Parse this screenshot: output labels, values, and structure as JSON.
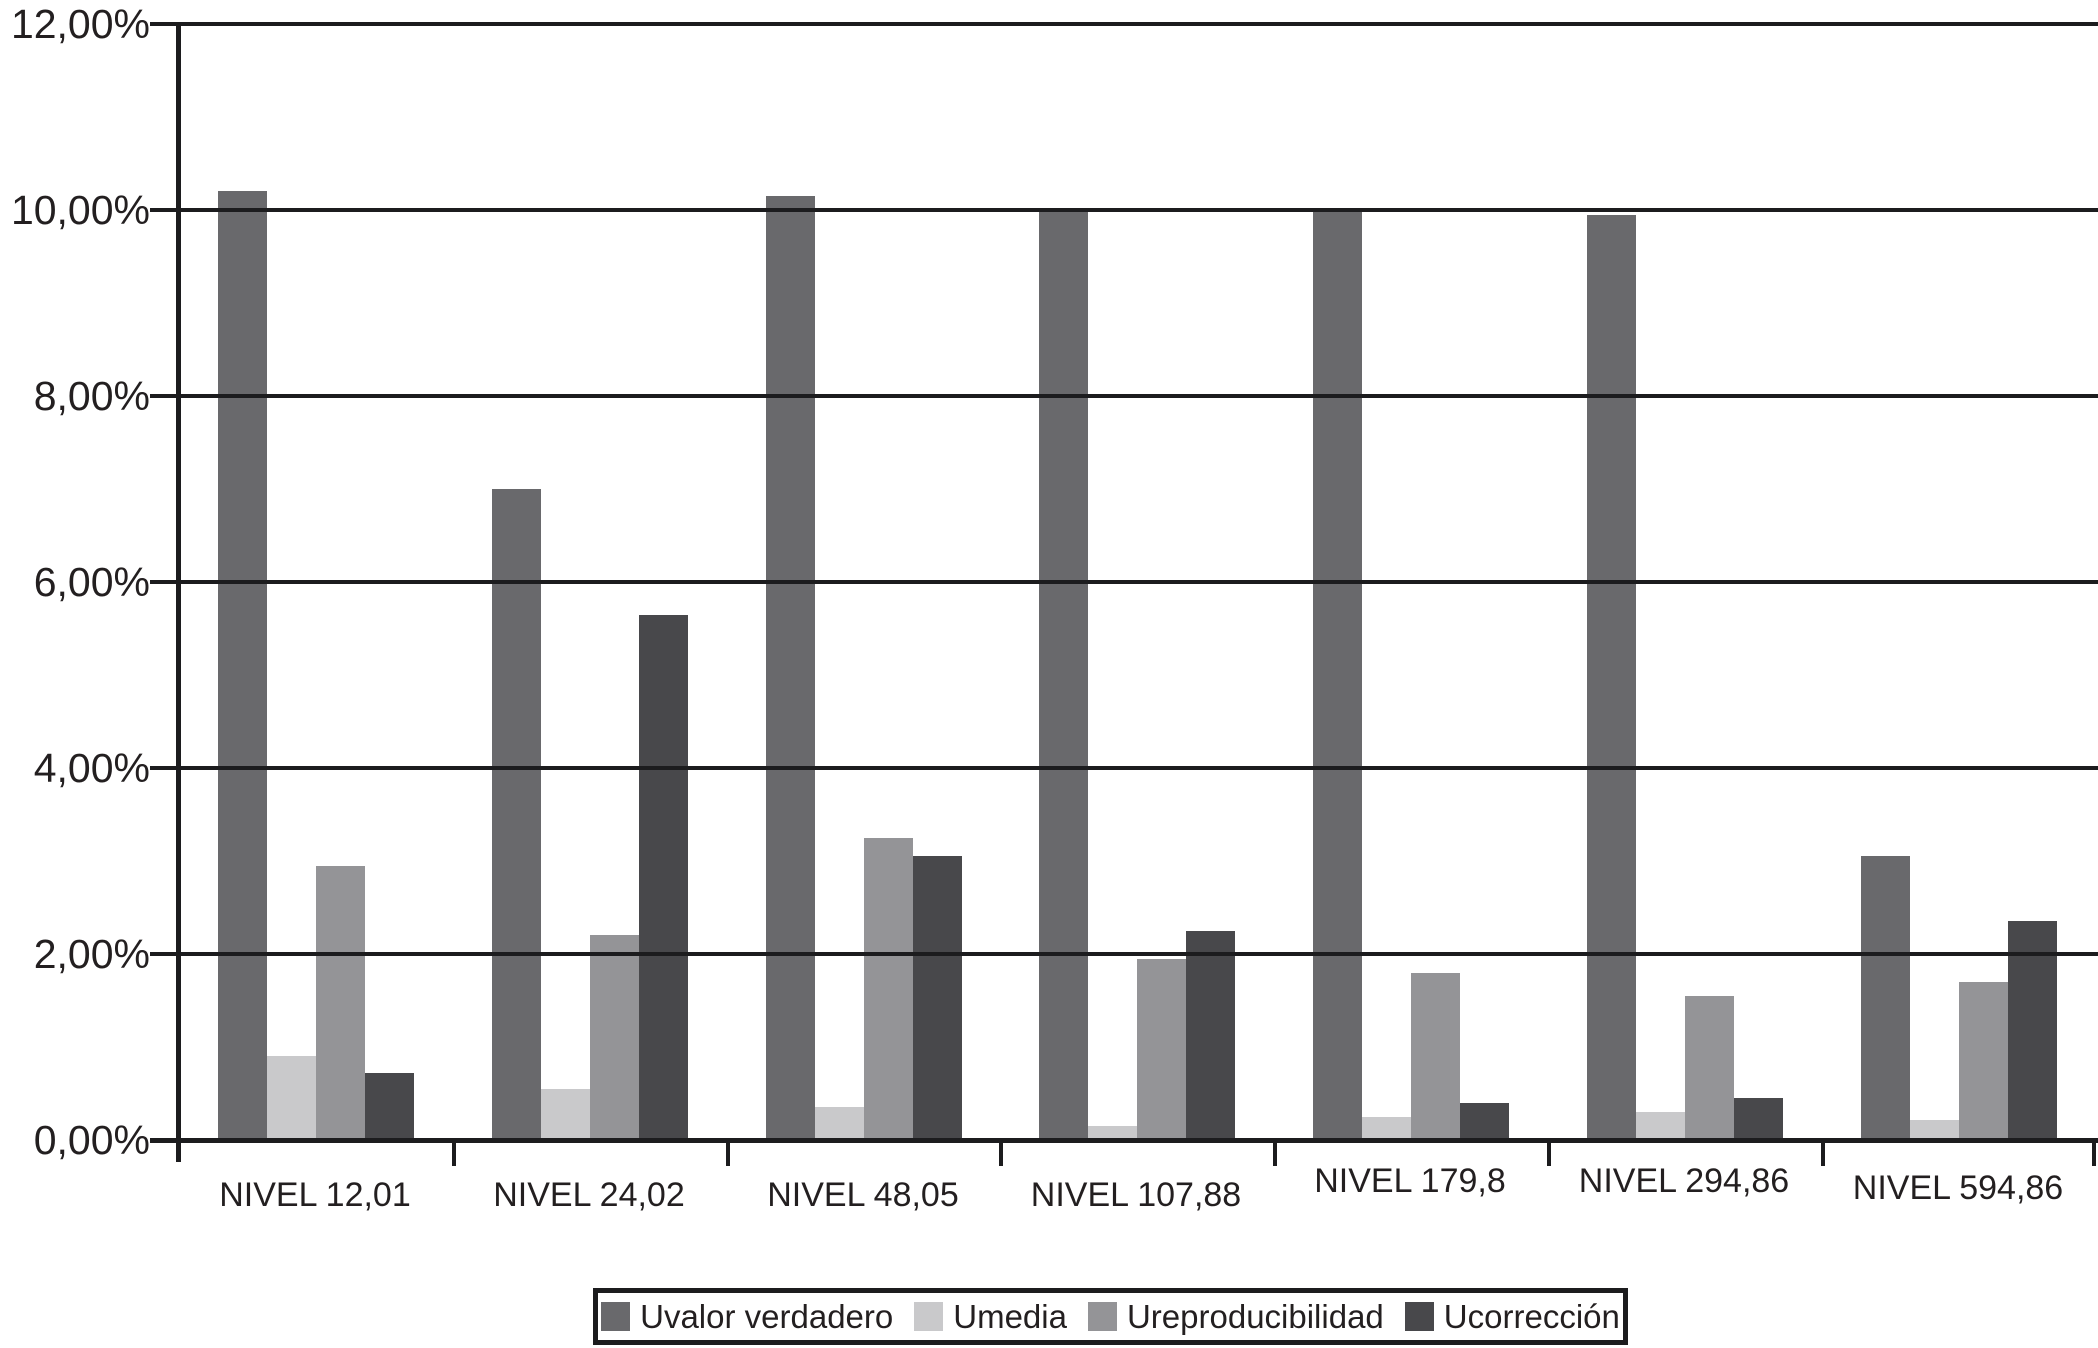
{
  "chart_data": {
    "type": "bar",
    "title": "",
    "xlabel": "",
    "ylabel": "",
    "grid": true,
    "legend_position": "bottom",
    "categories": [
      "NIVEL 12,01",
      "NIVEL 24,02",
      "NIVEL 48,05",
      "NIVEL 107,88",
      "NIVEL 179,8",
      "NIVEL 294,86",
      "NIVEL 594,86"
    ],
    "series": [
      {
        "name": "Uvalor verdadero",
        "color": "#69696c",
        "values": [
          10.2,
          7.0,
          10.15,
          10.0,
          10.0,
          9.95,
          3.05
        ]
      },
      {
        "name": "Umedia",
        "color": "#c9c9cb",
        "values": [
          0.9,
          0.55,
          0.35,
          0.15,
          0.25,
          0.3,
          0.22
        ]
      },
      {
        "name": "Ureproducibilidad",
        "color": "#949497",
        "values": [
          2.95,
          2.2,
          3.25,
          1.95,
          1.8,
          1.55,
          1.7
        ]
      },
      {
        "name": "Ucorrección",
        "color": "#48484b",
        "values": [
          0.72,
          5.65,
          3.05,
          2.25,
          0.4,
          0.45,
          2.35
        ]
      }
    ],
    "y_axis": {
      "tick_labels": [
        "0,00%",
        "2,00%",
        "4,00%",
        "6,00%",
        "8,00%",
        "10,00%",
        "12,00%"
      ],
      "tick_values": [
        0,
        2,
        4,
        6,
        8,
        10,
        12
      ],
      "min": 0,
      "max": 12
    },
    "axis_color": "#1c1c1e",
    "background_color": "#ffffff"
  }
}
